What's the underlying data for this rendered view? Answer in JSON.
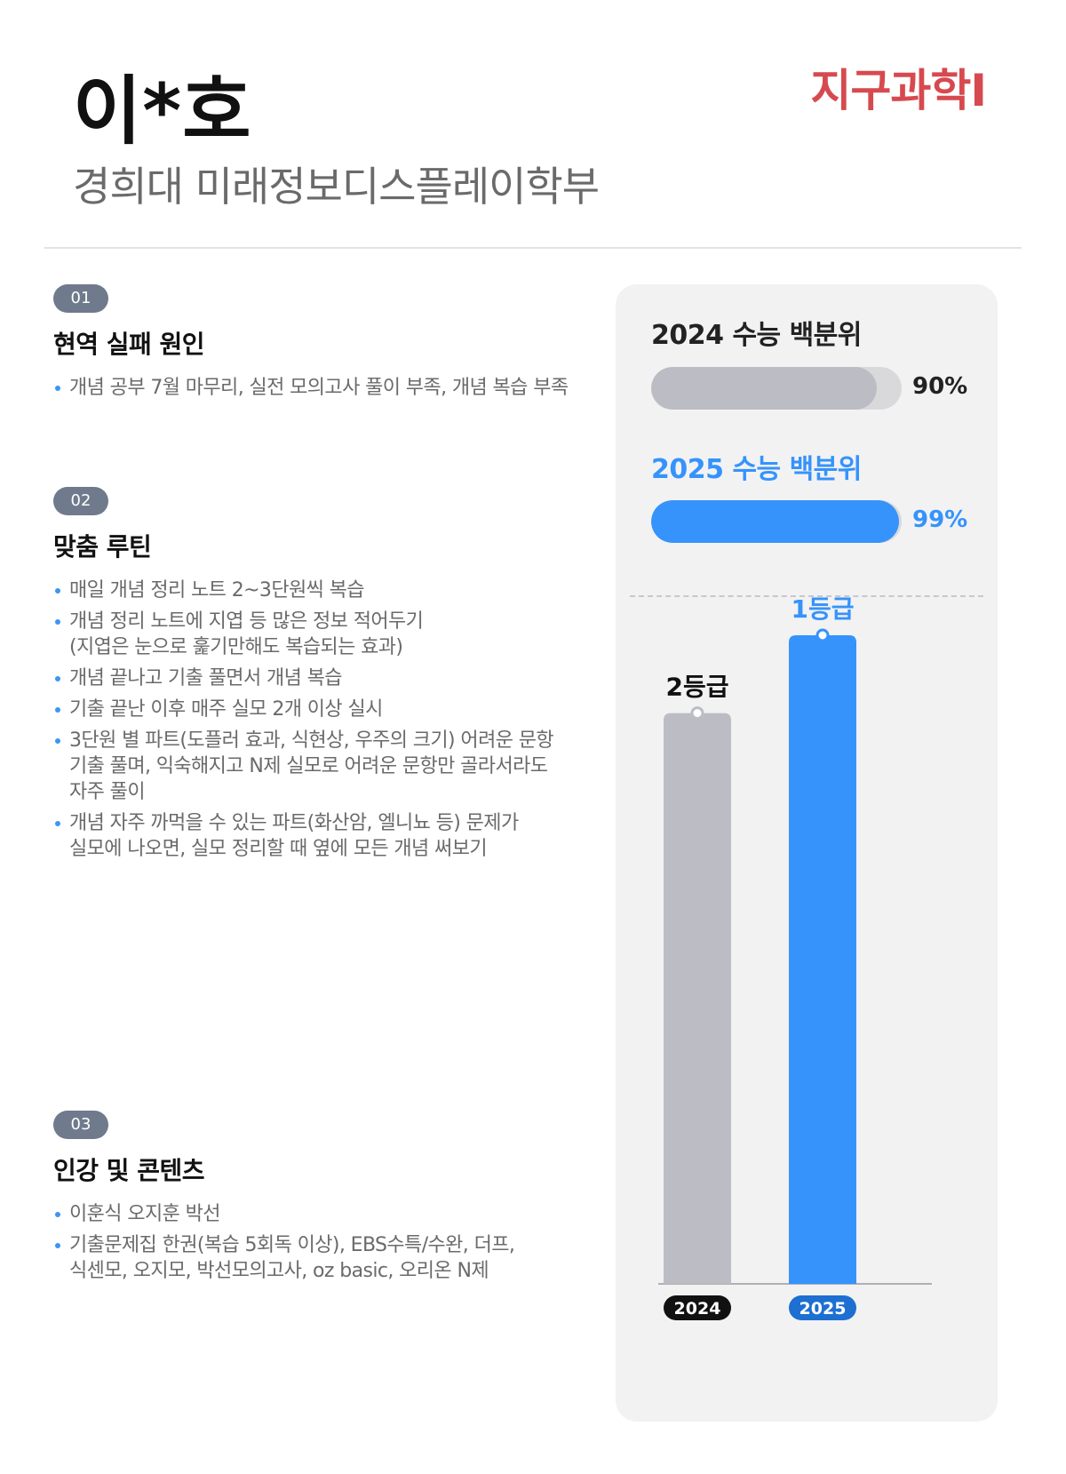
{
  "header": {
    "name": "이*호",
    "school": "경희대 미래정보디스플레이학부",
    "subject": "지구과학Ⅰ"
  },
  "sections": [
    {
      "badge": "01",
      "title": "현역 실패 원인",
      "items": [
        "개념 공부 7월 마무리, 실전 모의고사 풀이 부족, 개념 복습 부족"
      ]
    },
    {
      "badge": "02",
      "title": "맞춤 루틴",
      "items": [
        "매일 개념 정리 노트 2~3단원씩 복습",
        "개념 정리 노트에 지엽 등 많은 정보 적어두기\n(지엽은 눈으로 훑기만해도 복습되는 효과)",
        "개념 끝나고 기출 풀면서 개념 복습",
        "기출 끝난 이후 매주 실모 2개 이상 실시",
        "3단원 별 파트(도플러 효과, 식현상, 우주의 크기) 어려운 문항\n기출 풀며, 익숙해지고 N제 실모로 어려운 문항만 골라서라도\n자주 풀이",
        "개념 자주 까먹을 수 있는 파트(화산암, 엘니뇨 등) 문제가\n실모에 나오면, 실모 정리할 때 옆에 모든 개념 써보기"
      ]
    },
    {
      "badge": "03",
      "title": "인강 및 콘텐츠",
      "items": [
        "이훈식 오지훈 박선",
        "기출문제집 한권(복습 5회독 이상), EBS수특/수완, 더프,\n식센모, 오지모, 박선모의고사, oz basic, 오리온 N제"
      ]
    }
  ],
  "chart_data": [
    {
      "type": "bar",
      "orientation": "horizontal",
      "categories": [
        "2024 수능 백분위",
        "2025 수능 백분위"
      ],
      "values": [
        90,
        99
      ],
      "value_labels": [
        "90%",
        "99%"
      ],
      "xlim": [
        0,
        100
      ],
      "colors": [
        "#bcbcc4",
        "#3593fb"
      ],
      "label_colors": [
        "#222222",
        "#3593fb"
      ],
      "value_colors": [
        "#222222",
        "#3593fb"
      ]
    },
    {
      "type": "bar",
      "categories": [
        "2024",
        "2025"
      ],
      "values": [
        2,
        1
      ],
      "value_labels": [
        "2등급",
        "1등급"
      ],
      "note": "lower grade number is better; bar height reflects rank quality",
      "heights": [
        0.88,
        1.0
      ],
      "colors": [
        "#bcbcc4",
        "#3593fb"
      ],
      "label_colors": [
        "#111111",
        "#3593fb"
      ],
      "tick_colors": [
        "#111111",
        "#1d6fd1"
      ]
    }
  ]
}
